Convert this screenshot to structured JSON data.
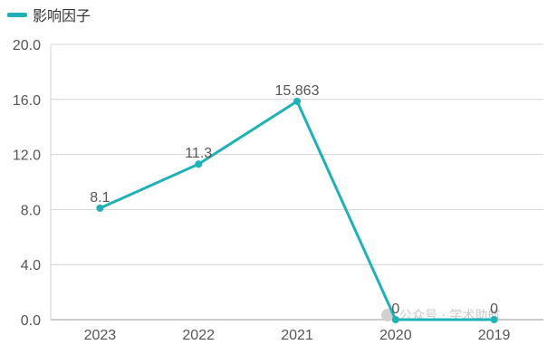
{
  "chart_data": {
    "type": "line",
    "categories": [
      "2023",
      "2022",
      "2021",
      "2020",
      "2019"
    ],
    "series": [
      {
        "name": "影响因子",
        "values": [
          8.1,
          11.3,
          15.863,
          0,
          0
        ],
        "labels": [
          "8.1",
          "11.3",
          "15.863",
          "0",
          "0"
        ]
      }
    ],
    "y_ticks": [
      "0.0",
      "4.0",
      "8.0",
      "12.0",
      "16.0",
      "20.0"
    ],
    "ylim": [
      0,
      20
    ],
    "grid": true,
    "legend": "top-left",
    "color": "#1fb1b5"
  },
  "watermark": {
    "text": "公众号 · 学术助航"
  }
}
